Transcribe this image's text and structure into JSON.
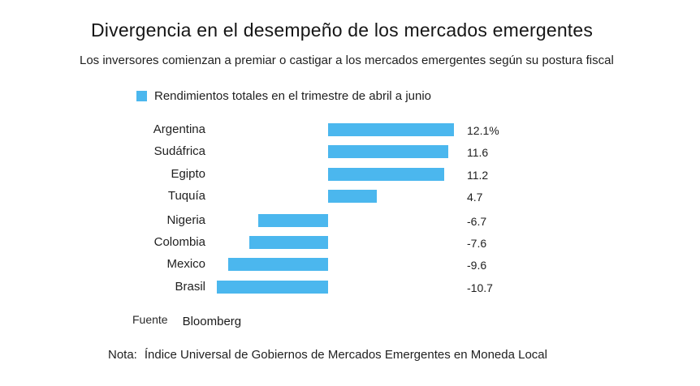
{
  "header": {
    "title": "Divergencia en el desempeño de los mercados emergentes",
    "subtitle": "Los inversores comienzan a premiar o castigar a los mercados emergentes según su postura fiscal"
  },
  "legend": {
    "label": "Rendimientos totales en el trimestre de abril a junio",
    "swatch_color": "#4bb7ee"
  },
  "chart_data": {
    "type": "bar",
    "orientation": "horizontal",
    "title": "Divergencia en el desempeño de los mercados emergentes",
    "subtitle": "Los inversores comienzan a premiar o castigar a los mercados emergentes según su postura fiscal",
    "legend_entries": [
      "Rendimientos totales en el trimestre de abril a junio"
    ],
    "categories": [
      "Argentina",
      "Sudáfrica",
      "Egipto",
      "Tuquía",
      "Nigeria",
      "Colombia",
      "Mexico",
      "Brasil"
    ],
    "values": [
      12.1,
      11.6,
      11.2,
      4.7,
      -6.7,
      -7.6,
      -9.6,
      -10.7
    ],
    "value_labels": [
      "12.1%",
      "11.6",
      "11.2",
      "4.7",
      "-6.7",
      "-7.6",
      "-9.6",
      "-10.7"
    ],
    "unit": "%",
    "bar_color": "#4bb7ee",
    "xlim": [
      -12,
      13
    ],
    "grid": false,
    "legend_position": "top-left",
    "value_label_position": "right-column"
  },
  "footer": {
    "source_label": "Fuente",
    "source_value": "Bloomberg",
    "note_label": "Nota:",
    "note_text": "Índice Universal de Gobiernos de Mercados Emergentes en Moneda Local"
  }
}
